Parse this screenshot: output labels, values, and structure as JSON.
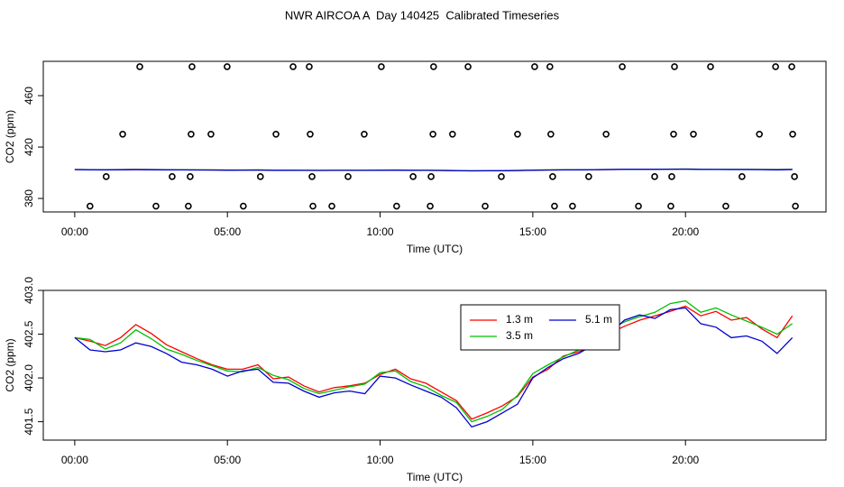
{
  "chart_data": [
    {
      "type": "scatter",
      "title": "NWR AIRCOA A  Day 140425  Calibrated Timeseries",
      "x_label": "Time (UTC)",
      "y_label": "CO2 (ppm)",
      "x": [
        2.13,
        3.84,
        4.99,
        7.15,
        7.68,
        10.04,
        11.75,
        12.88,
        15.06,
        15.56,
        17.93,
        19.64,
        20.82,
        22.95,
        23.48,
        1.57,
        3.81,
        4.46,
        6.59,
        7.71,
        9.48,
        11.73,
        12.37,
        14.5,
        15.59,
        17.4,
        19.61,
        20.26,
        22.42,
        23.51,
        1.03,
        3.19,
        3.78,
        6.08,
        7.77,
        8.95,
        11.08,
        11.67,
        13.97,
        15.65,
        16.83,
        18.99,
        19.55,
        21.85,
        23.57,
        0.5,
        2.66,
        3.72,
        5.52,
        7.8,
        8.42,
        10.54,
        11.64,
        13.44,
        15.71,
        16.3,
        18.46,
        19.52,
        21.32,
        23.6
      ],
      "values": [
        482.5,
        482.5,
        482.5,
        482.5,
        482.5,
        482.5,
        482.5,
        482.5,
        482.5,
        482.5,
        482.5,
        482.5,
        482.5,
        482.5,
        482.5,
        430,
        430,
        430,
        430,
        430,
        430,
        430,
        430,
        430,
        430,
        430,
        430,
        430,
        430,
        430,
        397,
        397,
        397,
        397,
        397,
        397,
        397,
        397,
        397,
        397,
        397,
        397,
        397,
        397,
        397,
        374,
        374,
        374,
        374,
        374,
        374,
        374,
        374,
        374,
        374,
        374,
        374,
        374,
        374,
        374
      ],
      "color": "#000000",
      "xlim": [
        -1.03,
        24.6
      ],
      "xticks": [
        {
          "value": 0,
          "label": "00:00"
        },
        {
          "value": 5,
          "label": "05:00"
        },
        {
          "value": 10,
          "label": "10:00"
        },
        {
          "value": 15,
          "label": "15:00"
        },
        {
          "value": 20,
          "label": "20:00"
        }
      ],
      "ylim": [
        369.5,
        486.7
      ],
      "yticks": [
        380,
        420,
        460
      ]
    },
    {
      "type": "line",
      "x_label": "Time (UTC)",
      "y_label": "CO2 (ppm)",
      "x": [
        0,
        0.5,
        1,
        1.5,
        2,
        2.5,
        3,
        3.5,
        4,
        4.5,
        5,
        5.5,
        6,
        6.5,
        7,
        7.5,
        8,
        8.5,
        9,
        9.5,
        10,
        10.5,
        11,
        11.5,
        12,
        12.5,
        13,
        13.5,
        14,
        14.5,
        15,
        15.5,
        16,
        16.5,
        17,
        17.5,
        18,
        18.5,
        19,
        19.5,
        20,
        20.5,
        21,
        21.5,
        22,
        22.5,
        23,
        23.5
      ],
      "series": [
        {
          "name": "1.3 m",
          "color": "#ff0000",
          "values": [
            402.46,
            402.42,
            402.37,
            402.46,
            402.61,
            402.51,
            402.38,
            402.3,
            402.22,
            402.15,
            402.1,
            402.1,
            402.15,
            401.99,
            402.01,
            401.91,
            401.84,
            401.89,
            401.91,
            401.94,
            402.04,
            402.1,
            401.99,
            401.94,
            401.84,
            401.74,
            401.53,
            401.6,
            401.68,
            401.79,
            402.01,
            402.1,
            402.25,
            402.3,
            402.35,
            402.51,
            402.59,
            402.66,
            402.71,
            402.76,
            402.82,
            402.71,
            402.76,
            402.66,
            402.69,
            402.56,
            402.46,
            402.71
          ]
        },
        {
          "name": "3.5 m",
          "color": "#00c000",
          "values": [
            402.46,
            402.44,
            402.33,
            402.4,
            402.55,
            402.45,
            402.33,
            402.27,
            402.2,
            402.14,
            402.08,
            402.07,
            402.12,
            402.03,
            401.98,
            401.88,
            401.82,
            401.86,
            401.9,
            401.93,
            402.06,
            402.08,
            401.96,
            401.9,
            401.8,
            401.72,
            401.5,
            401.56,
            401.64,
            401.8,
            402.05,
            402.15,
            402.24,
            402.32,
            402.4,
            402.55,
            402.64,
            402.7,
            402.75,
            402.85,
            402.88,
            402.75,
            402.8,
            402.72,
            402.65,
            402.58,
            402.5,
            402.62
          ]
        },
        {
          "name": "5.1 m",
          "color": "#0000d0",
          "values": [
            402.46,
            402.32,
            402.3,
            402.32,
            402.4,
            402.36,
            402.28,
            402.18,
            402.15,
            402.1,
            402.02,
            402.08,
            402.1,
            401.95,
            401.94,
            401.85,
            401.78,
            401.83,
            401.85,
            401.82,
            402.02,
            402.0,
            401.92,
            401.85,
            401.78,
            401.66,
            401.44,
            401.5,
            401.6,
            401.7,
            402.0,
            402.12,
            402.22,
            402.28,
            402.38,
            402.5,
            402.66,
            402.72,
            402.68,
            402.78,
            402.8,
            402.62,
            402.58,
            402.46,
            402.48,
            402.42,
            402.28,
            402.46
          ]
        }
      ],
      "xlim": [
        -1.03,
        24.6
      ],
      "xticks": [
        {
          "value": 0,
          "label": "00:00"
        },
        {
          "value": 5,
          "label": "05:00"
        },
        {
          "value": 10,
          "label": "10:00"
        },
        {
          "value": 15,
          "label": "15:00"
        },
        {
          "value": 20,
          "label": "20:00"
        }
      ],
      "ylim": [
        401.29,
        403.0
      ],
      "yticks": [
        401.5,
        {
          "value": 402,
          "label": "402.0"
        },
        402.5,
        {
          "value": 403,
          "label": "403.0"
        }
      ]
    }
  ]
}
